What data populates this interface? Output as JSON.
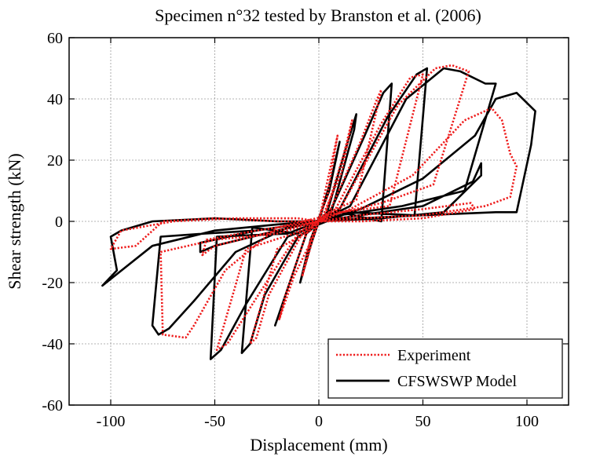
{
  "chart_data": {
    "type": "line",
    "title": "Specimen n°32 tested by Branston et al. (2006)",
    "xlabel": "Displacement (mm)",
    "ylabel": "Shear strength (kN)",
    "xlim": [
      -120,
      120
    ],
    "ylim": [
      -60,
      60
    ],
    "xticks": [
      -100,
      -50,
      0,
      50,
      100
    ],
    "yticks": [
      -60,
      -40,
      -20,
      0,
      20,
      40,
      60
    ],
    "xtick_labels": [
      "-100",
      "-50",
      "0",
      "50",
      "100"
    ],
    "ytick_labels": [
      "-60",
      "-40",
      "-20",
      "0",
      "20",
      "40",
      "60"
    ],
    "grid": true,
    "legend_position": "bottom-right",
    "colors": {
      "experiment": "#ee1c1c",
      "model": "#000000",
      "grid": "#9a9a9a"
    },
    "series": [
      {
        "name": "Experiment",
        "style": "dotted",
        "color": "#ee1c1c",
        "points": [
          [
            0,
            0
          ],
          [
            5,
            16
          ],
          [
            9,
            28
          ],
          [
            4,
            8
          ],
          [
            -4,
            -6
          ],
          [
            -8,
            -18
          ],
          [
            -3,
            -6
          ],
          [
            0,
            0
          ],
          [
            3,
            2
          ],
          [
            12,
            22
          ],
          [
            16,
            33
          ],
          [
            11,
            16
          ],
          [
            2,
            2
          ],
          [
            -6,
            -4
          ],
          [
            -16,
            -24
          ],
          [
            -19,
            -32
          ],
          [
            -12,
            -18
          ],
          [
            -2,
            -4
          ],
          [
            0,
            0
          ],
          [
            5,
            3
          ],
          [
            20,
            26
          ],
          [
            28,
            40
          ],
          [
            30,
            43
          ],
          [
            18,
            7
          ],
          [
            5,
            3
          ],
          [
            -8,
            -4
          ],
          [
            -24,
            -24
          ],
          [
            -30,
            -38
          ],
          [
            -33,
            -40
          ],
          [
            -20,
            -9
          ],
          [
            -4,
            -3
          ],
          [
            0,
            0
          ],
          [
            8,
            4
          ],
          [
            30,
            32
          ],
          [
            44,
            47
          ],
          [
            50,
            48
          ],
          [
            34,
            5
          ],
          [
            10,
            3
          ],
          [
            -10,
            -4
          ],
          [
            -30,
            -25
          ],
          [
            -44,
            -40
          ],
          [
            -49,
            -42
          ],
          [
            -35,
            -9
          ],
          [
            -12,
            -4
          ],
          [
            0,
            0
          ],
          [
            10,
            4
          ],
          [
            38,
            38
          ],
          [
            56,
            50
          ],
          [
            64,
            51
          ],
          [
            72,
            49
          ],
          [
            55,
            12
          ],
          [
            30,
            6
          ],
          [
            5,
            2
          ],
          [
            -20,
            -2
          ],
          [
            -45,
            -16
          ],
          [
            -60,
            -34
          ],
          [
            -64,
            -38
          ],
          [
            -75,
            -37
          ],
          [
            -76,
            -10
          ],
          [
            -50,
            -6
          ],
          [
            -20,
            -4
          ],
          [
            0,
            0
          ],
          [
            15,
            4
          ],
          [
            45,
            15
          ],
          [
            70,
            33
          ],
          [
            83,
            37
          ],
          [
            88,
            33
          ],
          [
            92,
            22
          ],
          [
            95,
            18
          ],
          [
            92,
            8
          ],
          [
            80,
            5
          ],
          [
            50,
            2
          ],
          [
            20,
            1
          ],
          [
            0,
            0
          ],
          [
            -20,
            0
          ],
          [
            -50,
            1
          ],
          [
            -75,
            0
          ],
          [
            -88,
            -8
          ],
          [
            -100,
            -9
          ],
          [
            -95,
            -3
          ],
          [
            -70,
            0
          ],
          [
            -40,
            1
          ],
          [
            -10,
            1
          ],
          [
            0,
            0
          ],
          [
            20,
            2
          ],
          [
            50,
            4
          ],
          [
            73,
            6
          ],
          [
            75,
            4
          ],
          [
            50,
            1
          ],
          [
            20,
            0
          ],
          [
            0,
            0
          ],
          [
            -20,
            -3
          ],
          [
            -50,
            -8
          ],
          [
            -56,
            -11
          ],
          [
            -54,
            -6
          ],
          [
            -30,
            -3
          ],
          [
            0,
            0
          ]
        ]
      },
      {
        "name": "CFSWSWP Model",
        "style": "solid",
        "color": "#000000",
        "points": [
          [
            0,
            0
          ],
          [
            6,
            14
          ],
          [
            10,
            26
          ],
          [
            5,
            10
          ],
          [
            -4,
            -6
          ],
          [
            -9,
            -20
          ],
          [
            -4,
            -8
          ],
          [
            0,
            0
          ],
          [
            4,
            3
          ],
          [
            13,
            24
          ],
          [
            18,
            35
          ],
          [
            17,
            30
          ],
          [
            6,
            3
          ],
          [
            -6,
            -4
          ],
          [
            -17,
            -26
          ],
          [
            -21,
            -34
          ],
          [
            -19,
            -30
          ],
          [
            -6,
            -4
          ],
          [
            0,
            0
          ],
          [
            6,
            4
          ],
          [
            22,
            28
          ],
          [
            31,
            42
          ],
          [
            35,
            45
          ],
          [
            30,
            0
          ],
          [
            10,
            3
          ],
          [
            -10,
            -5
          ],
          [
            -26,
            -24
          ],
          [
            -33,
            -40
          ],
          [
            -37,
            -43
          ],
          [
            -32,
            -2
          ],
          [
            -10,
            -4
          ],
          [
            0,
            0
          ],
          [
            10,
            4
          ],
          [
            33,
            34
          ],
          [
            47,
            48
          ],
          [
            52,
            50
          ],
          [
            46,
            2
          ],
          [
            15,
            3
          ],
          [
            -15,
            -5
          ],
          [
            -35,
            -27
          ],
          [
            -47,
            -42
          ],
          [
            -52,
            -45
          ],
          [
            -49,
            -5
          ],
          [
            -15,
            -4
          ],
          [
            0,
            0
          ],
          [
            15,
            5
          ],
          [
            42,
            40
          ],
          [
            60,
            50
          ],
          [
            68,
            49
          ],
          [
            80,
            45
          ],
          [
            85,
            45
          ],
          [
            70,
            10
          ],
          [
            40,
            5
          ],
          [
            10,
            2
          ],
          [
            -15,
            -2
          ],
          [
            -40,
            -10
          ],
          [
            -60,
            -26
          ],
          [
            -72,
            -35
          ],
          [
            -77,
            -37
          ],
          [
            -80,
            -34
          ],
          [
            -76,
            -5
          ],
          [
            -55,
            -4
          ],
          [
            -30,
            -3
          ],
          [
            0,
            0
          ],
          [
            20,
            4
          ],
          [
            50,
            14
          ],
          [
            75,
            28
          ],
          [
            85,
            40
          ],
          [
            95,
            42
          ],
          [
            104,
            36
          ],
          [
            102,
            25
          ],
          [
            95,
            3
          ],
          [
            85,
            3
          ],
          [
            50,
            2
          ],
          [
            20,
            1
          ],
          [
            0,
            0
          ],
          [
            -20,
            0
          ],
          [
            -50,
            1
          ],
          [
            -80,
            0
          ],
          [
            -95,
            -3
          ],
          [
            -100,
            -5
          ],
          [
            -97,
            -16
          ],
          [
            -104,
            -21
          ],
          [
            -80,
            -8
          ],
          [
            -50,
            -3
          ],
          [
            -20,
            -1
          ],
          [
            0,
            0
          ],
          [
            20,
            2
          ],
          [
            50,
            5
          ],
          [
            74,
            13
          ],
          [
            78,
            19
          ],
          [
            78,
            15
          ],
          [
            60,
            3
          ],
          [
            30,
            1
          ],
          [
            0,
            0
          ],
          [
            -20,
            -3
          ],
          [
            -50,
            -8
          ],
          [
            -57,
            -10
          ],
          [
            -57,
            -7
          ],
          [
            -30,
            -3
          ],
          [
            0,
            0
          ]
        ]
      }
    ]
  }
}
